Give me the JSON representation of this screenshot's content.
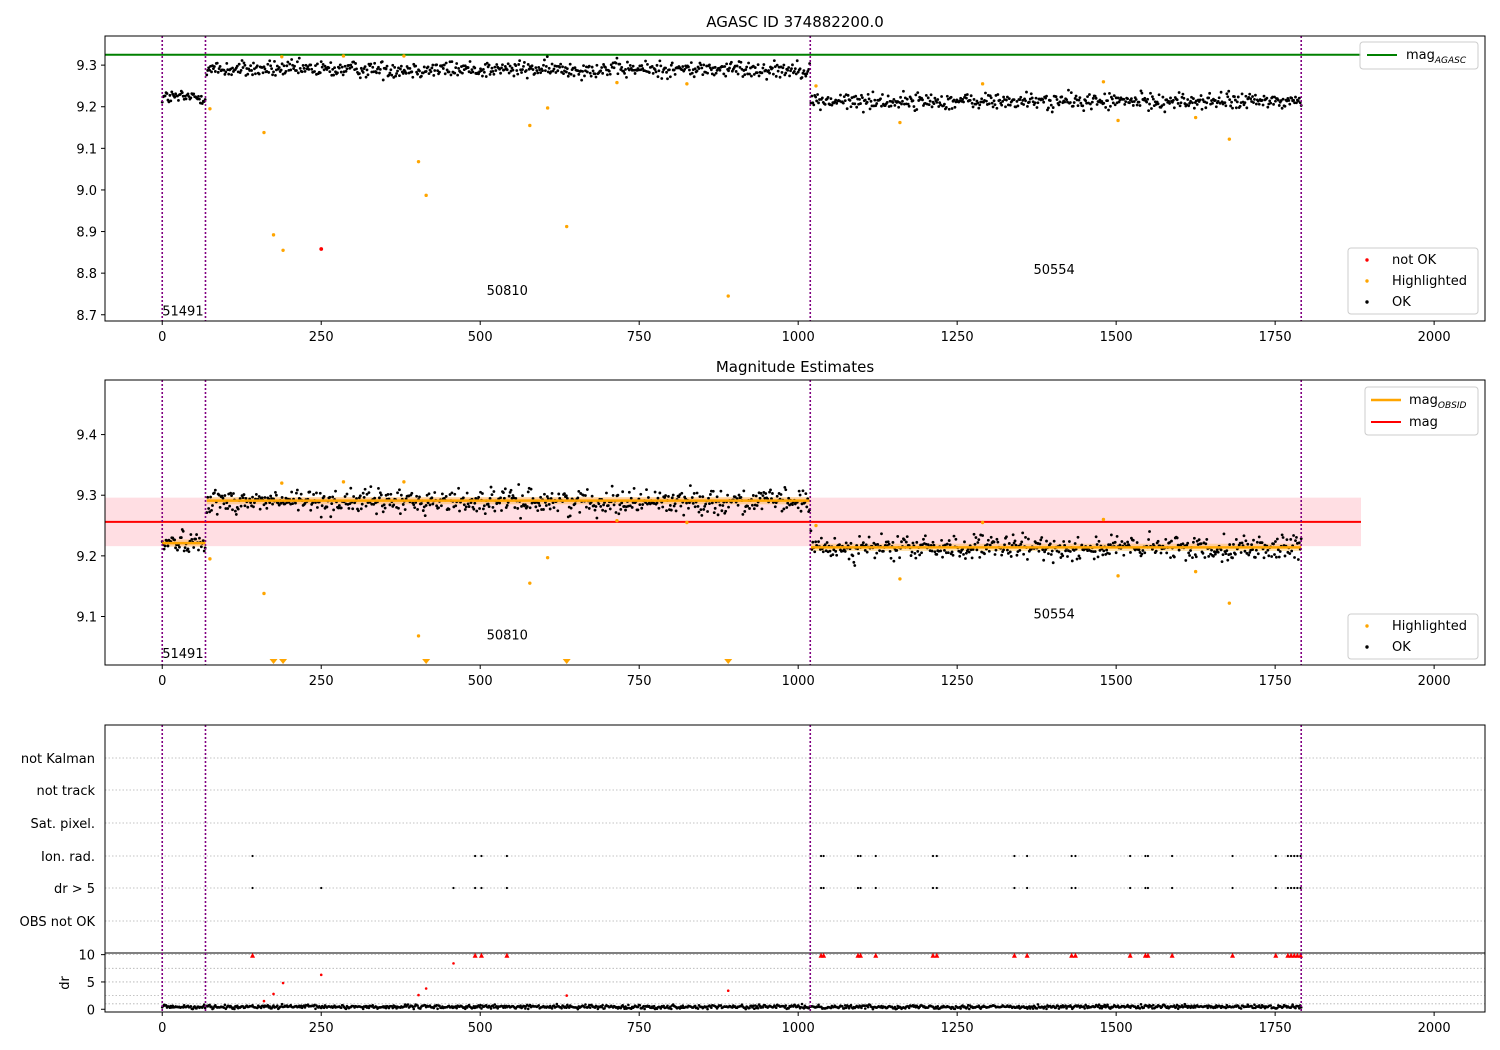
{
  "figure": {
    "title": "AGASC ID 374882200.0"
  },
  "chart_data": [
    {
      "type": "scatter",
      "title": "AGASC ID 374882200.0",
      "xlim": [
        -90,
        2080
      ],
      "ylim": [
        8.685,
        9.37
      ],
      "xticks": [
        0,
        250,
        500,
        750,
        1000,
        1250,
        1500,
        1750,
        2000
      ],
      "yticks": [
        8.7,
        8.8,
        8.9,
        9.0,
        9.1,
        9.2,
        9.3
      ],
      "grid": false,
      "observation_boundaries": [
        0,
        68,
        1019,
        1791
      ],
      "observation_labels": [
        {
          "text": "51491",
          "x": 0,
          "y": 8.71
        },
        {
          "text": "50810",
          "x": 510,
          "y": 8.76
        },
        {
          "text": "50554",
          "x": 1370,
          "y": 8.81
        }
      ],
      "reference_line": {
        "name": "mag_AGASC",
        "y": 9.325,
        "xmax": 1885,
        "color": "#008000"
      },
      "segments": [
        {
          "obsid": "51491",
          "x0": 0,
          "x1": 68,
          "mean": 9.223,
          "sd": 0.009
        },
        {
          "obsid": "50810",
          "x0": 70,
          "x1": 1018,
          "mean": 9.29,
          "sd": 0.01
        },
        {
          "obsid": "50554",
          "x0": 1020,
          "x1": 1791,
          "mean": 9.213,
          "sd": 0.01
        }
      ],
      "highlighted": [
        [
          75,
          9.195
        ],
        [
          160,
          9.138
        ],
        [
          175,
          8.892
        ],
        [
          188,
          9.32
        ],
        [
          190,
          8.855
        ],
        [
          285,
          9.322
        ],
        [
          380,
          9.322
        ],
        [
          403,
          9.068
        ],
        [
          415,
          8.987
        ],
        [
          578,
          9.155
        ],
        [
          606,
          9.197
        ],
        [
          636,
          8.912
        ],
        [
          715,
          9.258
        ],
        [
          825,
          9.255
        ],
        [
          890,
          8.745
        ],
        [
          1028,
          9.25
        ],
        [
          1160,
          9.162
        ],
        [
          1290,
          9.255
        ],
        [
          1480,
          9.26
        ],
        [
          1503,
          9.167
        ],
        [
          1625,
          9.174
        ],
        [
          1678,
          9.122
        ]
      ],
      "not_ok": [
        [
          250,
          8.858
        ]
      ],
      "legend": {
        "position": "lower-right",
        "entries": [
          "not OK",
          "Highlighted",
          "OK"
        ]
      },
      "legend_lines": {
        "position": "upper-right",
        "entries": [
          "mag_AGASC"
        ]
      },
      "colors": {
        "ok": "#000000",
        "highlighted": "#FFA500",
        "not_ok": "#FF0000",
        "agasc": "#008000",
        "boundary": "#800080"
      }
    },
    {
      "type": "scatter",
      "title": "Magnitude Estimates",
      "xlim": [
        -90,
        2080
      ],
      "ylim": [
        9.02,
        9.49
      ],
      "xticks": [
        0,
        250,
        500,
        750,
        1000,
        1250,
        1500,
        1750,
        2000
      ],
      "yticks": [
        9.1,
        9.2,
        9.3,
        9.4
      ],
      "grid": false,
      "observation_labels": [
        {
          "text": "51491",
          "x": 0,
          "y": 9.04
        },
        {
          "text": "50810",
          "x": 510,
          "y": 9.07
        },
        {
          "text": "50554",
          "x": 1370,
          "y": 9.105
        }
      ],
      "mag_line": {
        "name": "mag",
        "y": 9.256,
        "band": [
          9.216,
          9.296
        ],
        "xmax": 1885,
        "color": "#FF0000"
      },
      "obsid_mag_lines": [
        {
          "obsid": "51491",
          "x0": 0,
          "x1": 68,
          "y": 9.221
        },
        {
          "obsid": "50810",
          "x0": 70,
          "x1": 1018,
          "y": 9.291
        },
        {
          "obsid": "50554",
          "x0": 1020,
          "x1": 1791,
          "y": 9.214
        }
      ],
      "highlighted": [
        [
          75,
          9.195
        ],
        [
          160,
          9.138
        ],
        [
          188,
          9.32
        ],
        [
          285,
          9.322
        ],
        [
          380,
          9.322
        ],
        [
          403,
          9.068
        ],
        [
          578,
          9.155
        ],
        [
          606,
          9.197
        ],
        [
          715,
          9.258
        ],
        [
          825,
          9.255
        ],
        [
          1028,
          9.25
        ],
        [
          1160,
          9.162
        ],
        [
          1290,
          9.255
        ],
        [
          1480,
          9.26
        ],
        [
          1503,
          9.167
        ],
        [
          1625,
          9.174
        ],
        [
          1678,
          9.122
        ]
      ],
      "below_range": [
        175,
        190,
        415,
        636,
        890
      ],
      "legend": {
        "position": "lower-right",
        "entries": [
          "Highlighted",
          "OK"
        ]
      },
      "legend_lines": {
        "position": "upper-right",
        "entries": [
          "mag_OBSID",
          "mag"
        ]
      }
    },
    {
      "type": "scatter",
      "title": "",
      "xlim": [
        -90,
        2080
      ],
      "flag_rows": [
        "not Kalman",
        "not track",
        "Sat. pixel.",
        "Ion. rad.",
        "dr > 5",
        "OBS not OK"
      ],
      "ion_rad_x": [
        142,
        492,
        502,
        542,
        1036,
        1040,
        1094,
        1098,
        1122,
        1212,
        1218,
        1340,
        1360,
        1430,
        1436,
        1522,
        1546,
        1550,
        1588,
        1683,
        1751,
        1770,
        1775,
        1780,
        1785,
        1790
      ],
      "dr_gt5_x": [
        142,
        250,
        458,
        492,
        502,
        542,
        1036,
        1040,
        1094,
        1098,
        1122,
        1212,
        1218,
        1340,
        1360,
        1430,
        1436,
        1522,
        1546,
        1550,
        1588,
        1683,
        1751,
        1770,
        1775,
        1780,
        1785,
        1790
      ],
      "dr_ylabel": "dr",
      "dr_ylim": [
        -0.5,
        10.3
      ],
      "dr_yticks": [
        0,
        5,
        10
      ],
      "dr_clipped_x": [
        142,
        492,
        502,
        542,
        1036,
        1040,
        1094,
        1098,
        1122,
        1212,
        1218,
        1340,
        1360,
        1430,
        1436,
        1522,
        1546,
        1550,
        1588,
        1683,
        1751,
        1770,
        1775,
        1780,
        1785,
        1790
      ],
      "dr_red": [
        [
          160,
          1.5
        ],
        [
          175,
          2.8
        ],
        [
          190,
          4.8
        ],
        [
          250,
          6.3
        ],
        [
          403,
          2.6
        ],
        [
          415,
          3.8
        ],
        [
          458,
          8.4
        ],
        [
          636,
          2.5
        ],
        [
          890,
          3.4
        ]
      ]
    }
  ]
}
